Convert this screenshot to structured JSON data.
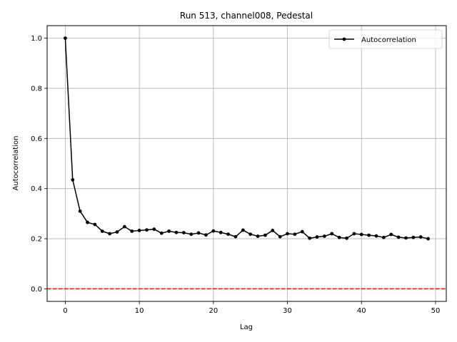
{
  "chart_data": {
    "type": "line",
    "title": "Run 513, channel008, Pedestal",
    "xlabel": "Lag",
    "ylabel": "Autocorrelation",
    "xlim": [
      -2.45,
      51.45
    ],
    "ylim": [
      -0.05,
      1.05
    ],
    "x_ticks": [
      0,
      10,
      20,
      30,
      40,
      50
    ],
    "y_ticks": [
      0.0,
      0.2,
      0.4,
      0.6,
      0.8,
      1.0
    ],
    "x_tick_labels": [
      "0",
      "10",
      "20",
      "30",
      "40",
      "50"
    ],
    "y_tick_labels": [
      "0.0",
      "0.2",
      "0.4",
      "0.6",
      "0.8",
      "1.0"
    ],
    "grid": true,
    "legend_position": "top-right",
    "series": [
      {
        "name": "Autocorrelation",
        "color": "#000000",
        "marker": "circle",
        "x": [
          0,
          1,
          2,
          3,
          4,
          5,
          6,
          7,
          8,
          9,
          10,
          11,
          12,
          13,
          14,
          15,
          16,
          17,
          18,
          19,
          20,
          21,
          22,
          23,
          24,
          25,
          26,
          27,
          28,
          29,
          30,
          31,
          32,
          33,
          34,
          35,
          36,
          37,
          38,
          39,
          40,
          41,
          42,
          43,
          44,
          45,
          46,
          47,
          48,
          49
        ],
        "values": [
          1.0,
          0.435,
          0.31,
          0.265,
          0.257,
          0.23,
          0.22,
          0.227,
          0.248,
          0.23,
          0.233,
          0.235,
          0.238,
          0.222,
          0.23,
          0.225,
          0.224,
          0.218,
          0.223,
          0.215,
          0.231,
          0.225,
          0.218,
          0.208,
          0.234,
          0.218,
          0.21,
          0.214,
          0.233,
          0.208,
          0.22,
          0.218,
          0.228,
          0.202,
          0.207,
          0.21,
          0.22,
          0.205,
          0.202,
          0.22,
          0.217,
          0.214,
          0.211,
          0.205,
          0.217,
          0.206,
          0.203,
          0.205,
          0.207,
          0.2
        ]
      }
    ],
    "reference_line": {
      "y": 0.0,
      "style": "dashed",
      "color": "#ff0000"
    }
  }
}
